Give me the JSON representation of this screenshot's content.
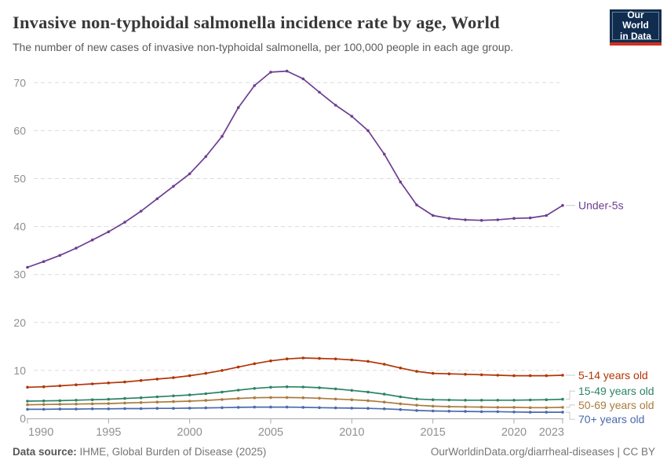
{
  "header": {
    "title": "Invasive non-typhoidal salmonella incidence rate by age, World",
    "subtitle": "The number of new cases of invasive non-typhoidal salmonella, per 100,000 people in each age group."
  },
  "logo": {
    "line1": "Our World",
    "line2": "in Data"
  },
  "chart_data": {
    "type": "line",
    "title": "Invasive non-typhoidal salmonella incidence rate by age, World",
    "xlabel": "",
    "ylabel": "New cases per 100,000 people",
    "ylim": [
      0,
      75
    ],
    "grid": true,
    "legend_position": "right-edge-labels",
    "x": [
      1990,
      1991,
      1992,
      1993,
      1994,
      1995,
      1996,
      1997,
      1998,
      1999,
      2000,
      2001,
      2002,
      2003,
      2004,
      2005,
      2006,
      2007,
      2008,
      2009,
      2010,
      2011,
      2012,
      2013,
      2014,
      2015,
      2016,
      2017,
      2018,
      2019,
      2020,
      2021,
      2022,
      2023
    ],
    "xticks": [
      1990,
      1995,
      2000,
      2005,
      2010,
      2015,
      2020,
      2023
    ],
    "yticks": [
      0,
      10,
      20,
      30,
      40,
      50,
      60,
      70
    ],
    "series": [
      {
        "name": "Under-5s",
        "color": "#6d3e91",
        "values": [
          31.5,
          32.7,
          34.0,
          35.5,
          37.2,
          38.9,
          40.9,
          43.2,
          45.8,
          48.4,
          51.0,
          54.6,
          58.8,
          64.8,
          69.4,
          72.2,
          72.4,
          70.8,
          68.0,
          65.3,
          63.0,
          60.0,
          55.1,
          49.3,
          44.5,
          42.3,
          41.7,
          41.4,
          41.3,
          41.4,
          41.7,
          41.8,
          42.3,
          44.4
        ]
      },
      {
        "name": "5-14 years old",
        "color": "#b13507",
        "values": [
          6.5,
          6.6,
          6.8,
          7.0,
          7.2,
          7.4,
          7.6,
          7.9,
          8.2,
          8.5,
          8.9,
          9.4,
          10.0,
          10.7,
          11.4,
          12.0,
          12.4,
          12.6,
          12.5,
          12.4,
          12.2,
          11.9,
          11.3,
          10.5,
          9.8,
          9.4,
          9.3,
          9.2,
          9.1,
          9.0,
          8.9,
          8.9,
          8.9,
          9.0
        ]
      },
      {
        "name": "15-49 years old",
        "color": "#2c8465",
        "values": [
          3.6,
          3.65,
          3.7,
          3.8,
          3.9,
          4.0,
          4.15,
          4.3,
          4.5,
          4.7,
          4.9,
          5.15,
          5.5,
          5.9,
          6.25,
          6.5,
          6.6,
          6.55,
          6.4,
          6.15,
          5.85,
          5.5,
          5.05,
          4.5,
          4.05,
          3.9,
          3.85,
          3.8,
          3.8,
          3.8,
          3.8,
          3.85,
          3.9,
          4.0
        ]
      },
      {
        "name": "50-69 years old",
        "color": "#aa7b3f",
        "values": [
          2.85,
          2.9,
          2.95,
          3.0,
          3.05,
          3.1,
          3.2,
          3.3,
          3.4,
          3.5,
          3.6,
          3.75,
          3.95,
          4.15,
          4.3,
          4.35,
          4.35,
          4.3,
          4.2,
          4.05,
          3.9,
          3.7,
          3.4,
          3.05,
          2.75,
          2.55,
          2.45,
          2.4,
          2.35,
          2.3,
          2.3,
          2.25,
          2.25,
          2.3
        ]
      },
      {
        "name": "70+ years old",
        "color": "#4a69ad",
        "values": [
          1.9,
          1.9,
          1.95,
          1.95,
          2.0,
          2.0,
          2.05,
          2.05,
          2.1,
          2.1,
          2.15,
          2.2,
          2.25,
          2.3,
          2.35,
          2.35,
          2.35,
          2.3,
          2.25,
          2.2,
          2.15,
          2.1,
          2.0,
          1.85,
          1.65,
          1.55,
          1.5,
          1.45,
          1.4,
          1.4,
          1.35,
          1.3,
          1.3,
          1.3
        ]
      }
    ]
  },
  "footer": {
    "source_label": "Data source:",
    "source_text": "IHME, Global Burden of Disease (2025)",
    "credit": "OurWorldinData.org/diarrheal-diseases | CC BY"
  }
}
